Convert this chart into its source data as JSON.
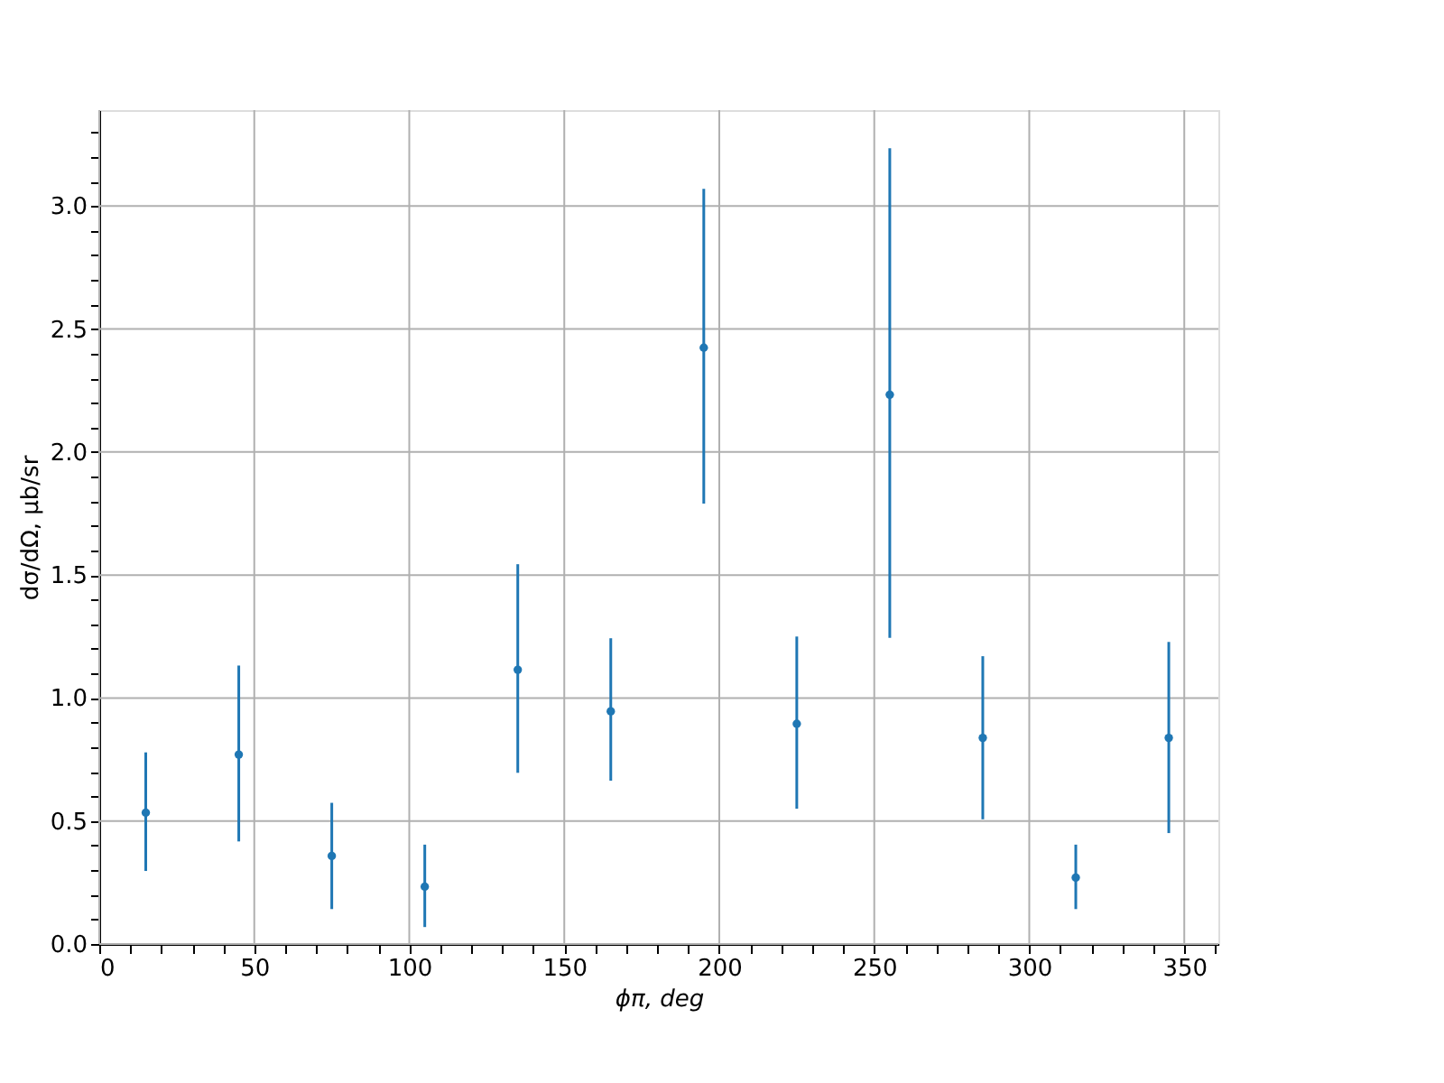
{
  "chart_data": {
    "type": "scatter",
    "xlabel": "ϕπ, deg",
    "ylabel": "dσ/dΩ, μb/sr",
    "x": [
      15,
      45,
      75,
      105,
      135,
      165,
      195,
      225,
      255,
      285,
      315,
      345
    ],
    "series": [
      {
        "color": "#1f77b4",
        "values": [
          0.534,
          0.77,
          0.358,
          0.233,
          1.115,
          0.946,
          2.424,
          0.895,
          2.233,
          0.838,
          0.27,
          0.838
        ],
        "errors": [
          [
            0.297,
            0.779
          ],
          [
            0.417,
            1.132
          ],
          [
            0.142,
            0.574
          ],
          [
            0.069,
            0.404
          ],
          [
            0.696,
            1.544
          ],
          [
            0.664,
            1.243
          ],
          [
            1.79,
            3.07
          ],
          [
            0.55,
            1.25
          ],
          [
            1.245,
            3.235
          ],
          [
            0.507,
            1.17
          ],
          [
            0.142,
            0.404
          ],
          [
            0.451,
            1.228
          ]
        ]
      }
    ],
    "xlim": [
      0,
      361
    ],
    "ylim": [
      0,
      3.39
    ],
    "xticks": [
      0,
      {
        "value": 10,
        "label": null
      },
      {
        "value": 20,
        "label": null
      },
      {
        "value": 30,
        "label": null
      },
      {
        "value": 40,
        "label": null
      },
      50,
      {
        "value": 60,
        "label": null
      },
      {
        "value": 70,
        "label": null
      },
      {
        "value": 80,
        "label": null
      },
      {
        "value": 90,
        "label": null
      },
      100,
      {
        "value": 110,
        "label": null
      },
      {
        "value": 120,
        "label": null
      },
      {
        "value": 130,
        "label": null
      },
      {
        "value": 140,
        "label": null
      },
      150,
      {
        "value": 160,
        "label": null
      },
      {
        "value": 170,
        "label": null
      },
      {
        "value": 180,
        "label": null
      },
      {
        "value": 190,
        "label": null
      },
      200,
      {
        "value": 210,
        "label": null
      },
      {
        "value": 220,
        "label": null
      },
      {
        "value": 230,
        "label": null
      },
      {
        "value": 240,
        "label": null
      },
      250,
      {
        "value": 260,
        "label": null
      },
      {
        "value": 270,
        "label": null
      },
      {
        "value": 280,
        "label": null
      },
      {
        "value": 290,
        "label": null
      },
      300,
      {
        "value": 310,
        "label": null
      },
      {
        "value": 320,
        "label": null
      },
      {
        "value": 330,
        "label": null
      },
      {
        "value": 340,
        "label": null
      },
      350,
      {
        "value": 360,
        "label": null
      }
    ],
    "yticks": [
      {
        "value": 0,
        "label": "0.0"
      },
      {
        "value": 0.1,
        "label": null
      },
      {
        "value": 0.2,
        "label": null
      },
      {
        "value": 0.3,
        "label": null
      },
      {
        "value": 0.4,
        "label": null
      },
      0.5,
      {
        "value": 0.6,
        "label": null
      },
      {
        "value": 0.7,
        "label": null
      },
      {
        "value": 0.8,
        "label": null
      },
      {
        "value": 0.9,
        "label": null
      },
      {
        "value": 1,
        "label": "1.0"
      },
      {
        "value": 1.1,
        "label": null
      },
      {
        "value": 1.2,
        "label": null
      },
      {
        "value": 1.3,
        "label": null
      },
      {
        "value": 1.4,
        "label": null
      },
      1.5,
      {
        "value": 1.6,
        "label": null
      },
      {
        "value": 1.7,
        "label": null
      },
      {
        "value": 1.8,
        "label": null
      },
      {
        "value": 1.9,
        "label": null
      },
      {
        "value": 2,
        "label": "2.0"
      },
      {
        "value": 2.1,
        "label": null
      },
      {
        "value": 2.2,
        "label": null
      },
      {
        "value": 2.3,
        "label": null
      },
      {
        "value": 2.4,
        "label": null
      },
      2.5,
      {
        "value": 2.6,
        "label": null
      },
      {
        "value": 2.7,
        "label": null
      },
      {
        "value": 2.8,
        "label": null
      },
      {
        "value": 2.9,
        "label": null
      },
      {
        "value": 3,
        "label": "3.0"
      },
      {
        "value": 3.1,
        "label": null
      },
      {
        "value": 3.2,
        "label": null
      },
      {
        "value": 3.3,
        "label": null
      }
    ],
    "grid": true,
    "marker": "circle"
  }
}
